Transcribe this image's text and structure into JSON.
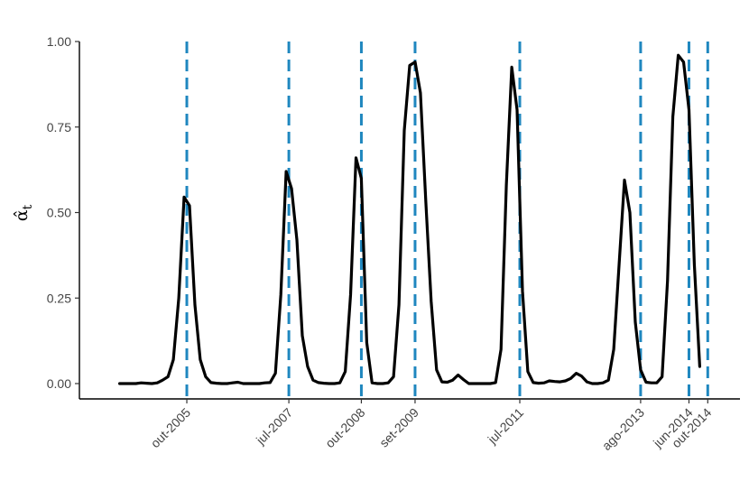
{
  "chart_data": {
    "type": "line",
    "ylabel": "α̂",
    "ylabel_subscript": "t",
    "ylim": [
      0,
      1
    ],
    "yticks": [
      0,
      0.25,
      0.5,
      0.75,
      1
    ],
    "ytick_labels": [
      "0.00",
      "0.25",
      "0.50",
      "0.75",
      "1.00"
    ],
    "xlim": [
      -7.5,
      115.5
    ],
    "grid": false,
    "legend": "none",
    "line_color": "#000000",
    "vline_color": "#1f87bf",
    "series": [
      {
        "x": [
          0,
          1,
          2,
          3,
          4,
          5,
          6,
          7,
          8,
          9,
          10,
          11,
          12,
          13,
          14,
          15,
          16,
          17,
          18,
          19,
          20,
          21,
          22,
          23,
          24,
          25,
          26,
          27,
          28,
          29,
          30,
          31,
          32,
          33,
          34,
          35,
          36,
          37,
          38,
          39,
          40,
          41,
          42,
          43,
          44,
          45,
          46,
          47,
          48,
          49,
          50,
          51,
          52,
          53,
          54,
          55,
          56,
          57,
          58,
          59,
          60,
          61,
          62,
          63,
          64,
          65,
          66,
          67,
          68,
          69,
          70,
          71,
          72,
          73,
          74,
          75,
          76,
          77,
          78,
          79,
          80,
          81,
          82,
          83,
          84,
          85,
          86,
          87,
          88,
          89,
          90,
          91,
          92,
          93,
          94,
          95,
          96,
          97,
          98,
          99,
          100,
          101,
          102,
          103,
          104,
          105,
          106,
          107,
          108
        ],
        "values": [
          0,
          0,
          0,
          0,
          0.002,
          0.001,
          0,
          0.002,
          0.01,
          0.02,
          0.07,
          0.25,
          0.545,
          0.52,
          0.23,
          0.07,
          0.02,
          0.003,
          0.001,
          0,
          0,
          0.002,
          0.004,
          0,
          0,
          0,
          0,
          0.002,
          0.003,
          0.03,
          0.26,
          0.62,
          0.57,
          0.42,
          0.14,
          0.05,
          0.01,
          0.003,
          0.001,
          0,
          0,
          0.002,
          0.035,
          0.26,
          0.66,
          0.6,
          0.12,
          0.002,
          0,
          0,
          0.002,
          0.02,
          0.23,
          0.74,
          0.93,
          0.94,
          0.85,
          0.53,
          0.24,
          0.04,
          0.005,
          0.004,
          0.01,
          0.025,
          0.012,
          0,
          0,
          0,
          0,
          0,
          0.003,
          0.1,
          0.58,
          0.925,
          0.8,
          0.27,
          0.035,
          0.003,
          0.001,
          0.002,
          0.008,
          0.006,
          0.005,
          0.008,
          0.015,
          0.03,
          0.022,
          0.005,
          0,
          0,
          0.002,
          0.01,
          0.1,
          0.35,
          0.595,
          0.5,
          0.18,
          0.04,
          0.004,
          0.002,
          0.002,
          0.02,
          0.3,
          0.78,
          0.96,
          0.94,
          0.8,
          0.35,
          0.05
        ]
      }
    ],
    "vlines": [
      {
        "x": 12.5,
        "label": "out-2005"
      },
      {
        "x": 31.5,
        "label": "jul-2007"
      },
      {
        "x": 45,
        "label": "out-2008"
      },
      {
        "x": 55,
        "label": "set-2009"
      },
      {
        "x": 74.5,
        "label": "jul-2011"
      },
      {
        "x": 97,
        "label": "ago-2013"
      },
      {
        "x": 106,
        "label": "jun-2014"
      },
      {
        "x": 109.5,
        "label": "out-2014"
      }
    ]
  }
}
